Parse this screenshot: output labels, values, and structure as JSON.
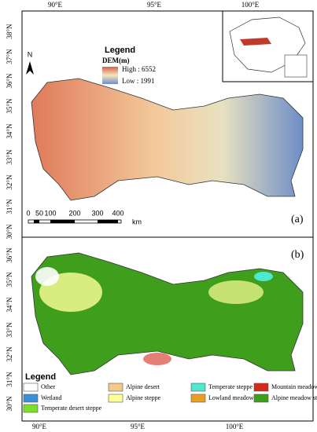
{
  "panel_a": {
    "lon_labels": [
      "90°E",
      "95°E",
      "100°E"
    ],
    "lat_labels": [
      "38°N",
      "37°N",
      "36°N",
      "35°N",
      "34°N",
      "33°N",
      "32°N",
      "31°N",
      "30°N"
    ],
    "north": "N",
    "legend": {
      "title": "Legend",
      "subtitle": "DEM(m)",
      "high": "High : 6552",
      "low": "Low : 1991"
    },
    "scale": {
      "ticks": [
        "0",
        "50",
        "100",
        "200",
        "300",
        "400"
      ],
      "unit": "km"
    },
    "tag": "(a)"
  },
  "panel_b": {
    "lat_labels": [
      "36°N",
      "35°N",
      "34°N",
      "33°N",
      "32°N",
      "31°N",
      "30°N"
    ],
    "lon_labels": [
      "90°E",
      "95°E",
      "100°E"
    ],
    "legend": {
      "title": "Legend",
      "items": [
        {
          "label": "Other",
          "color": "#ffffff"
        },
        {
          "label": "Wetland",
          "color": "#3b8fd6"
        },
        {
          "label": "Temperate desert steppe",
          "color": "#7be02a"
        },
        {
          "label": "Alpine desert",
          "color": "#f5c98a"
        },
        {
          "label": "Alpine steppe",
          "color": "#ffff99"
        },
        {
          "label": "Temperate steppe",
          "color": "#4de8d0"
        },
        {
          "label": "Lowland meadow",
          "color": "#e8a020"
        },
        {
          "label": "Mountain meadow",
          "color": "#d42a1a"
        },
        {
          "label": "Alpine meadow steppe",
          "color": "#3f9e1c"
        }
      ]
    },
    "tag": "(b)"
  }
}
